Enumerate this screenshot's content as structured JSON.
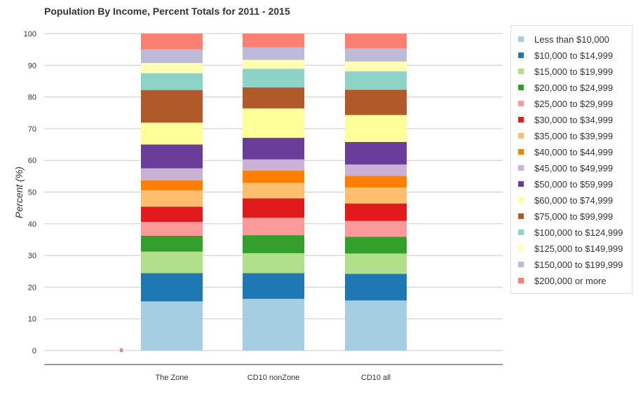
{
  "chart_data": {
    "type": "bar",
    "stacked": true,
    "title": "Population By Income, Percent Totals for 2011 - 2015",
    "ylabel": "Percent (%)",
    "xlabel": "",
    "ylim": [
      0,
      100
    ],
    "yticks": [
      "0",
      "10",
      "20",
      "30",
      "40",
      "50",
      "60",
      "70",
      "80",
      "90",
      "100"
    ],
    "grid": true,
    "legend_position": "right",
    "categories": [
      "The Zone",
      "CD10 nonZone",
      "CD10 all"
    ],
    "series": [
      {
        "name": "Less than $10,000",
        "color": "#a6cee3",
        "values": [
          15.5,
          16.3,
          15.8
        ]
      },
      {
        "name": "$10,000 to $14,999",
        "color": "#1f78b4",
        "values": [
          8.9,
          8.1,
          8.4
        ]
      },
      {
        "name": "$15,000 to $19,999",
        "color": "#b2df8a",
        "values": [
          6.8,
          6.3,
          6.4
        ]
      },
      {
        "name": "$20,000 to $24,999",
        "color": "#33a02c",
        "values": [
          5.0,
          5.7,
          5.3
        ]
      },
      {
        "name": "$25,000 to $29,999",
        "color": "#fb9a99",
        "values": [
          4.4,
          5.5,
          5.0
        ]
      },
      {
        "name": "$30,000 to $34,999",
        "color": "#e31a1c",
        "values": [
          4.8,
          6.1,
          5.5
        ]
      },
      {
        "name": "$35,000 to $39,999",
        "color": "#fdbf6f",
        "values": [
          5.1,
          4.9,
          5.0
        ]
      },
      {
        "name": "$40,000 to $44,999",
        "color": "#ff7f00",
        "values": [
          3.2,
          3.9,
          3.7
        ]
      },
      {
        "name": "$45,000 to $49,999",
        "color": "#cab2d6",
        "values": [
          3.8,
          3.5,
          3.6
        ]
      },
      {
        "name": "$50,000 to $59,999",
        "color": "#6a3d9a",
        "values": [
          7.5,
          6.8,
          7.1
        ]
      },
      {
        "name": "$60,000 to $74,999",
        "color": "#ffff99",
        "values": [
          6.9,
          9.3,
          8.5
        ]
      },
      {
        "name": "$75,000 to $99,999",
        "color": "#b15928",
        "values": [
          10.3,
          6.6,
          8.0
        ]
      },
      {
        "name": "$100,000 to $124,999",
        "color": "#8dd3c7",
        "values": [
          5.3,
          5.9,
          5.8
        ]
      },
      {
        "name": "$125,000 to $149,999",
        "color": "#ffffb3",
        "values": [
          3.2,
          2.8,
          3.1
        ]
      },
      {
        "name": "$150,000 to $199,999",
        "color": "#bebada",
        "values": [
          4.3,
          4.0,
          4.1
        ]
      },
      {
        "name": "$200,000 or more",
        "color": "#fb8072",
        "values": [
          5.0,
          4.3,
          4.7
        ]
      }
    ]
  }
}
